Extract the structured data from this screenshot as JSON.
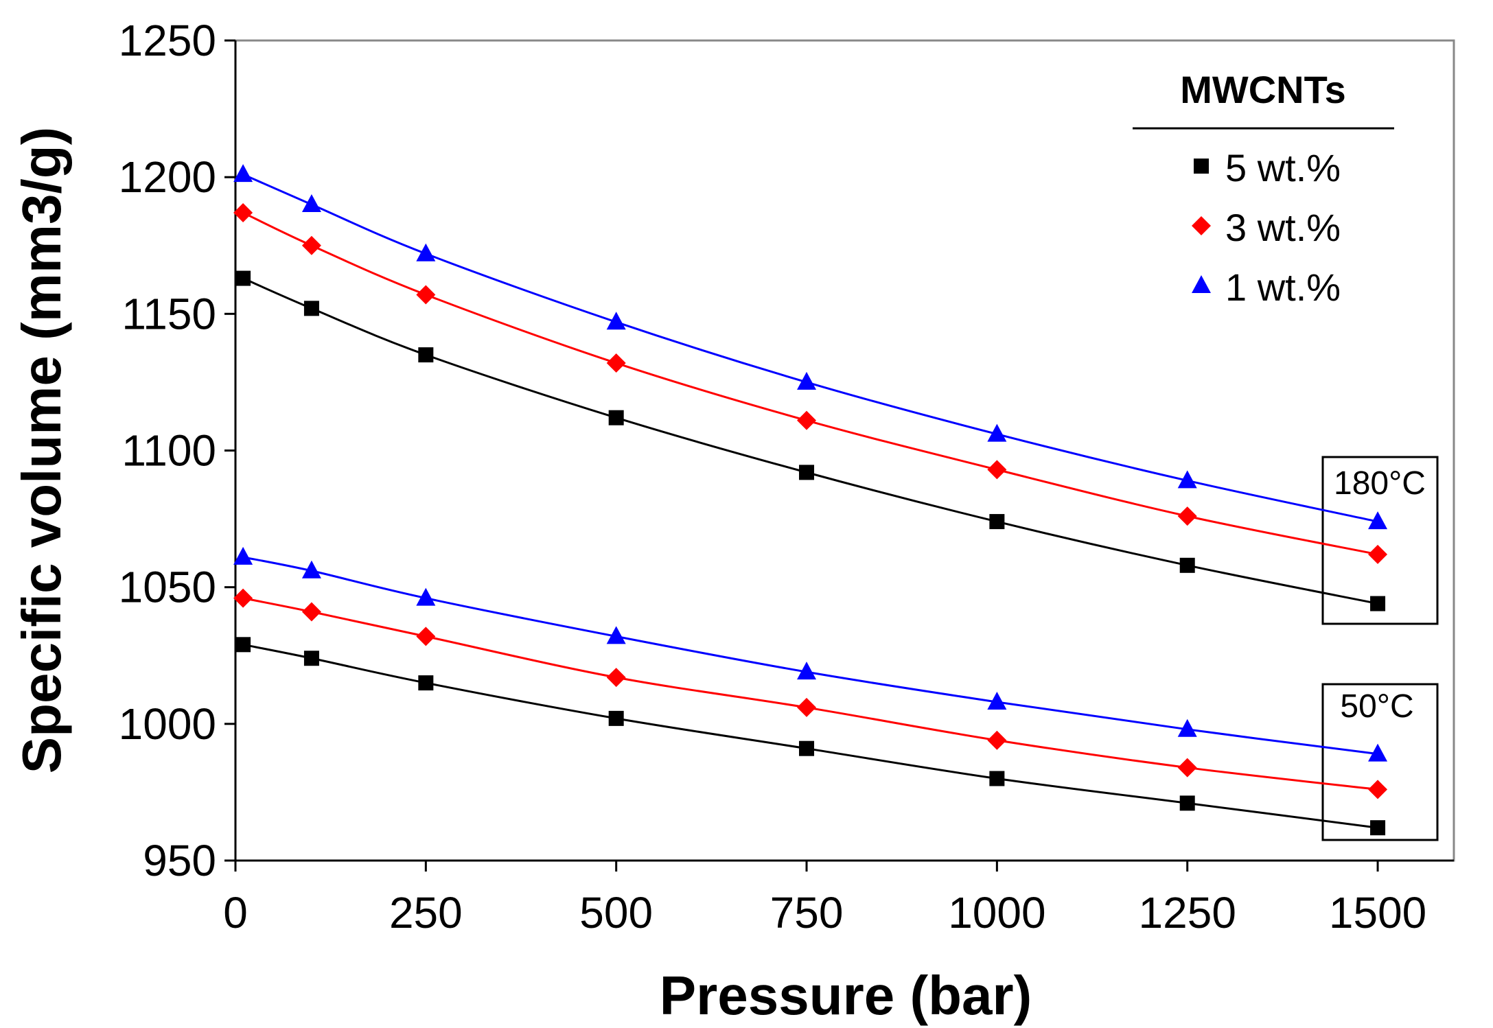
{
  "chart_data": {
    "type": "scatter",
    "title": "",
    "xlabel": "Pressure (bar)",
    "ylabel": "Specific volume (mm3/g)",
    "xlim": [
      0,
      1600
    ],
    "ylim": [
      950,
      1250
    ],
    "xticks": [
      "0",
      "250",
      "500",
      "750",
      "1000",
      "1250",
      "1500"
    ],
    "yticks": [
      "950",
      "1000",
      "1050",
      "1100",
      "1150",
      "1200",
      "1250"
    ],
    "grid": false,
    "legend": {
      "title": "MWCNTs",
      "position": "top-right",
      "entries": [
        "5 wt.%",
        "3 wt.%",
        "1 wt.%"
      ]
    },
    "x": [
      10,
      100,
      250,
      500,
      750,
      1000,
      1250,
      1500
    ],
    "series": [
      {
        "name": "5 wt.%",
        "group": "180°C",
        "color": "#000000",
        "marker": "square",
        "values": [
          1163,
          1152,
          1135,
          1112,
          1092,
          1074,
          1058,
          1044
        ]
      },
      {
        "name": "3 wt.%",
        "group": "180°C",
        "color": "#ff0000",
        "marker": "diamond",
        "values": [
          1187,
          1175,
          1157,
          1132,
          1111,
          1093,
          1076,
          1062
        ]
      },
      {
        "name": "1 wt.%",
        "group": "180°C",
        "color": "#0000ff",
        "marker": "triangle",
        "values": [
          1201,
          1190,
          1172,
          1147,
          1125,
          1106,
          1089,
          1074
        ]
      },
      {
        "name": "5 wt.%",
        "group": "50°C",
        "color": "#000000",
        "marker": "square",
        "values": [
          1029,
          1024,
          1015,
          1002,
          991,
          980,
          971,
          962
        ]
      },
      {
        "name": "3 wt.%",
        "group": "50°C",
        "color": "#ff0000",
        "marker": "diamond",
        "values": [
          1046,
          1041,
          1032,
          1017,
          1006,
          994,
          984,
          976
        ]
      },
      {
        "name": "1 wt.%",
        "group": "50°C",
        "color": "#0000ff",
        "marker": "triangle",
        "values": [
          1061,
          1056,
          1046,
          1032,
          1019,
          1008,
          998,
          989
        ]
      }
    ],
    "annotations": [
      "180°C",
      "50°C"
    ]
  }
}
